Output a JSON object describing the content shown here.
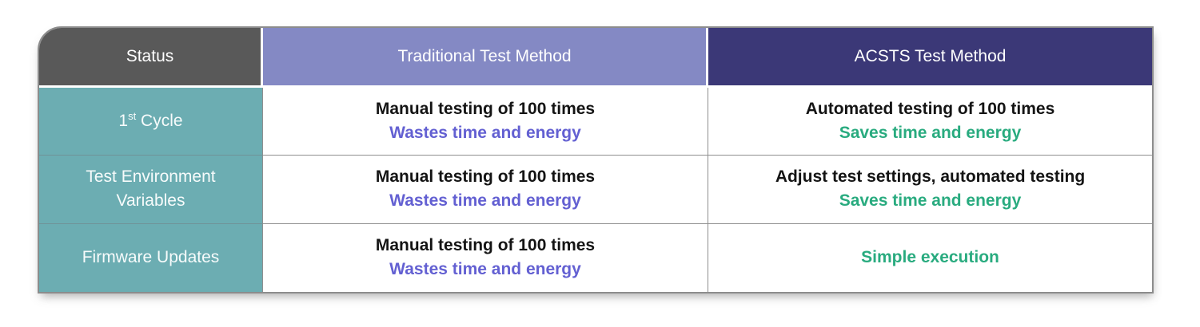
{
  "chart_data": {
    "type": "table",
    "title": "",
    "columns": [
      "Status",
      "Traditional Test Method",
      "ACSTS Test Method"
    ],
    "rows": [
      {
        "status": "1st Cycle",
        "traditional": "Manual testing of 100 times — Wastes time and energy",
        "acsts": "Automated testing of 100 times — Saves time and energy"
      },
      {
        "status": "Test Environment Variables",
        "traditional": "Manual testing of 100 times — Wastes time and energy",
        "acsts": "Adjust test settings, automated testing — Saves time and energy"
      },
      {
        "status": "Firmware Updates",
        "traditional": "Manual testing of 100 times — Wastes time and energy",
        "acsts": "Simple execution"
      }
    ]
  },
  "table": {
    "headers": {
      "status": "Status",
      "traditional": "Traditional Test Method",
      "acsts": "ACSTS Test Method"
    },
    "rows": [
      {
        "status": {
          "base": "1",
          "sup": "st",
          "rest": " Cycle"
        },
        "traditional": {
          "line1": "Manual testing of 100 times",
          "line2": "Wastes time and energy"
        },
        "acsts": {
          "line1": "Automated testing of 100 times",
          "line2": "Saves time and energy"
        }
      },
      {
        "status": {
          "base": "Test Environment Variables",
          "sup": "",
          "rest": ""
        },
        "traditional": {
          "line1": "Manual testing of 100 times",
          "line2": "Wastes time and energy"
        },
        "acsts": {
          "line1": "Adjust test settings, automated testing",
          "line2": "Saves time and energy"
        }
      },
      {
        "status": {
          "base": "Firmware Updates",
          "sup": "",
          "rest": ""
        },
        "traditional": {
          "line1": "Manual testing of 100 times",
          "line2": "Wastes time and energy"
        },
        "acsts": {
          "line1": "Simple execution",
          "line2": ""
        }
      }
    ],
    "colors": {
      "status_header_bg": "#595959",
      "traditional_header_bg": "#8489c4",
      "acsts_header_bg": "#3b3877",
      "row_header_bg": "#6cadb2",
      "negative_text": "#6360d2",
      "positive_text": "#29ab7f",
      "grid_line": "#8f8f8f"
    }
  }
}
